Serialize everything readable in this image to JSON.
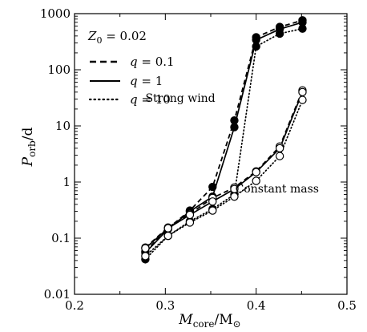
{
  "chart_data": {
    "type": "line",
    "xlabel_main": "M",
    "xlabel_sub": "core",
    "xlabel_unit": "/M",
    "xlabel_unit_symbol": "⊙",
    "ylabel_main": "P",
    "ylabel_sub": "orb",
    "ylabel_unit": "/d",
    "xlim": [
      0.2,
      0.5
    ],
    "ylim": [
      0.01,
      1000
    ],
    "yscale": "log",
    "xticks": [
      0.2,
      0.3,
      0.4,
      0.5
    ],
    "xtick_labels": [
      "0.2",
      "0.3",
      "0.4",
      "0.5"
    ],
    "yticks": [
      0.01,
      0.1,
      1,
      10,
      100,
      1000
    ],
    "ytick_labels": [
      "0.01",
      "0.1",
      "1",
      "10",
      "100",
      "1000"
    ],
    "grid": false,
    "legend_position": "top-left",
    "legend_title": "Z0 = 0.02",
    "legend_title_main": "Z",
    "legend_title_sub": "0",
    "legend_title_rest": " = 0.02",
    "legend": [
      {
        "name": "q = 0.1",
        "var": "q",
        "eq": " = 0.1",
        "style": "dashed"
      },
      {
        "name": "q = 1",
        "var": "q",
        "eq": " = 1",
        "style": "solid"
      },
      {
        "name": "q = 10",
        "var": "q",
        "eq": " = 10",
        "style": "dotted"
      }
    ],
    "annotations": [
      {
        "id": "strong-wind",
        "text": "Strong wind",
        "x": 0.355,
        "y": 27
      },
      {
        "id": "constant-mass",
        "text": "Constant mass",
        "x": 0.377,
        "y": 0.65
      }
    ],
    "x": [
      0.278,
      0.303,
      0.327,
      0.352,
      0.376,
      0.4,
      0.426,
      0.451
    ],
    "series": [
      {
        "name": "q = 0.1",
        "group": "Strong wind",
        "style": "dashed",
        "marker": "filled",
        "values": [
          0.058,
          0.15,
          0.31,
          0.82,
          12.5,
          380,
          580,
          760
        ]
      },
      {
        "name": "q = 1",
        "group": "Strong wind",
        "style": "solid",
        "marker": "filled",
        "values": [
          0.055,
          0.145,
          0.3,
          0.55,
          9.5,
          340,
          530,
          700
        ]
      },
      {
        "name": "q = 10",
        "group": "Strong wind",
        "style": "dotted",
        "marker": "filled",
        "values": [
          0.042,
          0.11,
          0.2,
          0.33,
          0.6,
          260,
          440,
          540
        ]
      },
      {
        "name": "q = 0.1",
        "group": "Constant mass",
        "style": "dashed",
        "marker": "open",
        "values": [
          0.068,
          0.155,
          0.27,
          0.52,
          0.8,
          1.55,
          4.3,
          43
        ]
      },
      {
        "name": "q = 1",
        "group": "Constant mass",
        "style": "solid",
        "marker": "open",
        "values": [
          0.066,
          0.15,
          0.26,
          0.45,
          0.75,
          1.5,
          4.0,
          40
        ]
      },
      {
        "name": "q = 10",
        "group": "Constant mass",
        "style": "dotted",
        "marker": "open",
        "values": [
          0.048,
          0.11,
          0.19,
          0.31,
          0.55,
          1.05,
          2.9,
          29
        ]
      }
    ]
  }
}
